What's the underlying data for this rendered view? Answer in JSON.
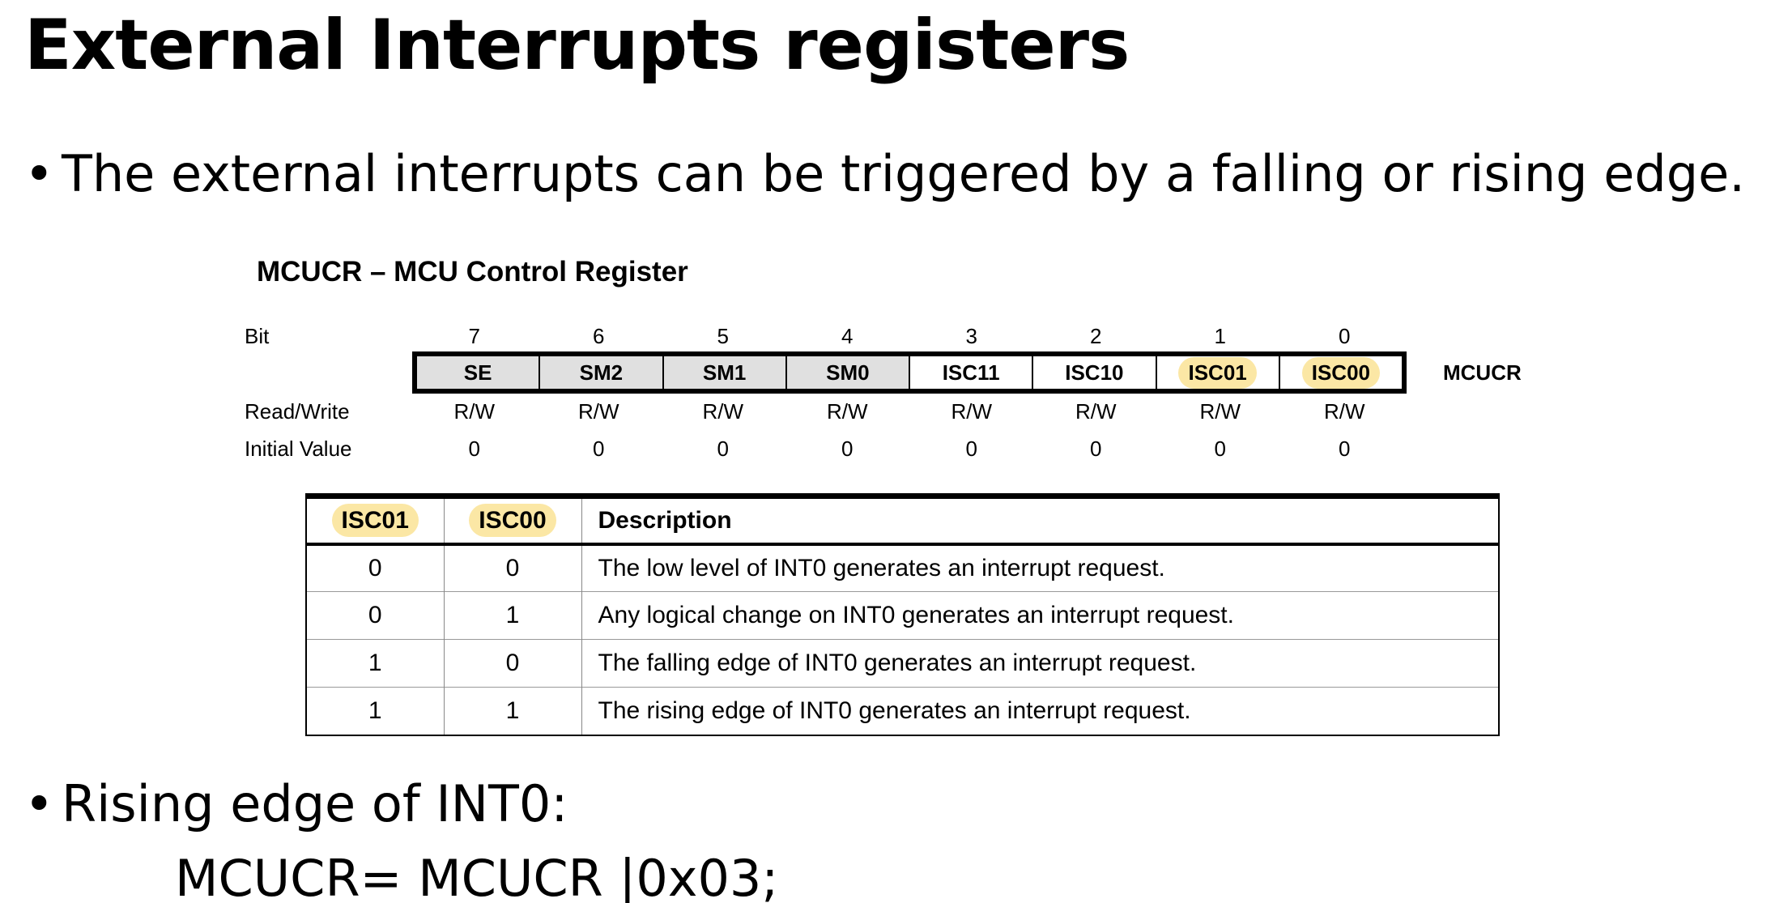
{
  "slide": {
    "title": "External Interrupts registers",
    "bullet1": "The external interrupts can be triggered by a falling or rising edge.",
    "bullet2": "Rising edge of INT0:",
    "code": "MCUCR= MCUCR |0x03;",
    "bullet_glyph": "•"
  },
  "register": {
    "title": "MCUCR – MCU Control Register",
    "bit_label": "Bit",
    "rw_label": "Read/Write",
    "init_label": "Initial Value",
    "name": "MCUCR",
    "bits": [
      "7",
      "6",
      "5",
      "4",
      "3",
      "2",
      "1",
      "0"
    ],
    "fields": [
      "SE",
      "SM2",
      "SM1",
      "SM0",
      "ISC11",
      "ISC10",
      "ISC01",
      "ISC00"
    ],
    "rw": [
      "R/W",
      "R/W",
      "R/W",
      "R/W",
      "R/W",
      "R/W",
      "R/W",
      "R/W"
    ],
    "init": [
      "0",
      "0",
      "0",
      "0",
      "0",
      "0",
      "0",
      "0"
    ],
    "gray_fill": "#e0e0e0",
    "highlight_color": "#fbe7a5"
  },
  "isc_table": {
    "headers": [
      "ISC01",
      "ISC00",
      "Description"
    ],
    "rows": [
      [
        "0",
        "0",
        "The low level of INT0 generates an interrupt request."
      ],
      [
        "0",
        "1",
        "Any logical change on INT0 generates an interrupt request."
      ],
      [
        "1",
        "0",
        "The falling edge of INT0 generates an interrupt request."
      ],
      [
        "1",
        "1",
        "The rising edge of INT0 generates an interrupt request."
      ]
    ]
  }
}
